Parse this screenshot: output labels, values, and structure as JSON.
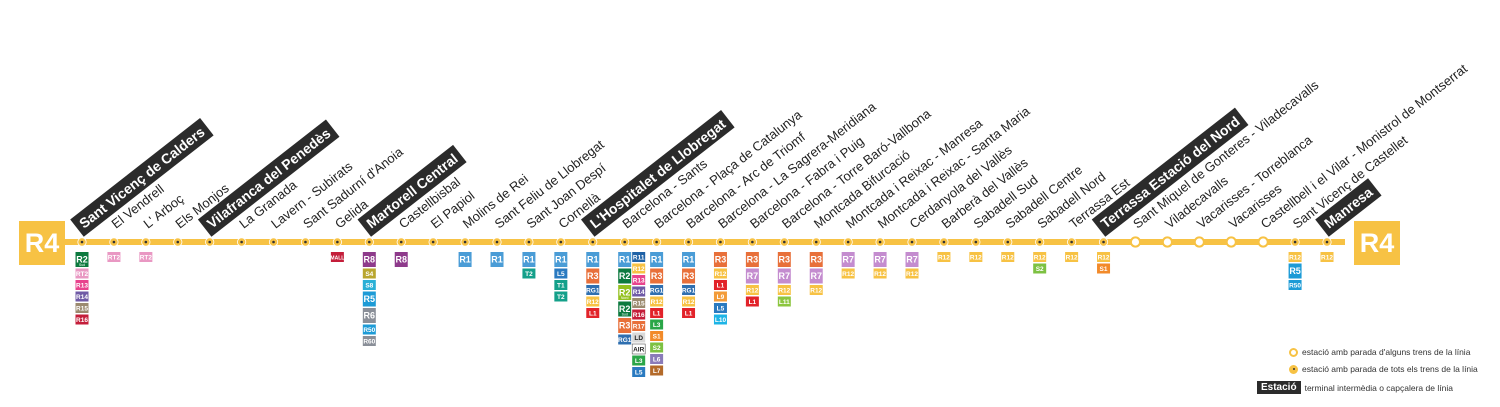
{
  "line": {
    "name": "R4",
    "color": "#f7c244"
  },
  "stations": [
    {
      "name": "Sant Vicenç de Calders",
      "terminal": true,
      "all_stop": true,
      "conn": [
        "R2 Sud",
        "RT2",
        "R13",
        "R14",
        "R15",
        "R16"
      ]
    },
    {
      "name": "El Vendrell",
      "terminal": false,
      "all_stop": true,
      "conn": [
        "RT2"
      ]
    },
    {
      "name": "L' Arboç",
      "terminal": false,
      "all_stop": true,
      "conn": [
        "RT2"
      ]
    },
    {
      "name": "Els Monjos",
      "terminal": false,
      "all_stop": true,
      "conn": []
    },
    {
      "name": "Vilafranca del Penedès",
      "terminal": true,
      "all_stop": true,
      "conn": []
    },
    {
      "name": "La Granada",
      "terminal": false,
      "all_stop": true,
      "conn": []
    },
    {
      "name": "Lavern - Subirats",
      "terminal": false,
      "all_stop": true,
      "conn": []
    },
    {
      "name": "Sant Sadurní d'Anoia",
      "terminal": false,
      "all_stop": true,
      "conn": []
    },
    {
      "name": "Gelida",
      "terminal": false,
      "all_stop": true,
      "conn": [
        "CREMALLERA"
      ]
    },
    {
      "name": "Martorell Central",
      "terminal": true,
      "all_stop": true,
      "conn": [
        "R8",
        "S4",
        "S8",
        "R5",
        "R6",
        "R50",
        "R60"
      ]
    },
    {
      "name": "Castellbisbal",
      "terminal": false,
      "all_stop": true,
      "conn": [
        "R8"
      ]
    },
    {
      "name": "El Papiol",
      "terminal": false,
      "all_stop": true,
      "conn": []
    },
    {
      "name": "Molins de Rei",
      "terminal": false,
      "all_stop": true,
      "conn": [
        "R1"
      ]
    },
    {
      "name": "Sant Feliu de Llobregat",
      "terminal": false,
      "all_stop": true,
      "conn": [
        "R1"
      ]
    },
    {
      "name": "Sant Joan Despí",
      "terminal": false,
      "all_stop": true,
      "conn": [
        "R1",
        "T2"
      ]
    },
    {
      "name": "Cornellà",
      "terminal": false,
      "all_stop": true,
      "conn": [
        "R1",
        "L5",
        "T1",
        "T2"
      ]
    },
    {
      "name": "L'Hospitalet de Llobregat",
      "terminal": true,
      "all_stop": true,
      "conn": [
        "R1",
        "R3",
        "RG1",
        "R12",
        "L1"
      ]
    },
    {
      "name": "Barcelona - Sants",
      "terminal": false,
      "all_stop": true,
      "conn": [
        "R1",
        "R2",
        "R2 Nord",
        "R2 Sud",
        "R3",
        "RG1"
      ],
      "conn2": [
        "R11",
        "R12",
        "R13",
        "R14",
        "R15",
        "R16",
        "R17",
        "LD",
        "AIR",
        "L3",
        "L5"
      ]
    },
    {
      "name": "Barcelona - Plaça de Catalunya",
      "terminal": false,
      "all_stop": true,
      "conn": [
        "R1",
        "R3",
        "RG1",
        "R12",
        "L1",
        "L3",
        "S1",
        "S2",
        "L6",
        "L7"
      ]
    },
    {
      "name": "Barcelona - Arc de Triomf",
      "terminal": false,
      "all_stop": true,
      "conn": [
        "R1",
        "R3",
        "RG1",
        "R12",
        "L1"
      ]
    },
    {
      "name": "Barcelona - La Sagrera-Meridiana",
      "terminal": false,
      "all_stop": true,
      "conn": [
        "R3",
        "R12",
        "L1",
        "L9",
        "L5",
        "L10"
      ]
    },
    {
      "name": "Barcelona - Fabra i Puig",
      "terminal": false,
      "all_stop": true,
      "conn": [
        "R3",
        "R7",
        "R12",
        "L1"
      ]
    },
    {
      "name": "Barcelona - Torre Baró-Vallbona",
      "terminal": false,
      "all_stop": true,
      "conn": [
        "R3",
        "R7",
        "R12",
        "L11"
      ]
    },
    {
      "name": "Montcada Bifurcació",
      "terminal": false,
      "all_stop": true,
      "conn": [
        "R3",
        "R7",
        "R12"
      ]
    },
    {
      "name": "Montcada i Reixac - Manresa",
      "terminal": false,
      "all_stop": true,
      "conn": [
        "R7",
        "R12"
      ]
    },
    {
      "name": "Montcada i Reixac - Santa Maria",
      "terminal": false,
      "all_stop": true,
      "conn": [
        "R7",
        "R12"
      ]
    },
    {
      "name": "Cerdanyola del Vallès",
      "terminal": false,
      "all_stop": true,
      "conn": [
        "R7",
        "R12"
      ]
    },
    {
      "name": "Barberà del Vallès",
      "terminal": false,
      "all_stop": true,
      "conn": [
        "R12"
      ]
    },
    {
      "name": "Sabadell Sud",
      "terminal": false,
      "all_stop": true,
      "conn": [
        "R12"
      ]
    },
    {
      "name": "Sabadell Centre",
      "terminal": false,
      "all_stop": true,
      "conn": [
        "R12"
      ]
    },
    {
      "name": "Sabadell Nord",
      "terminal": false,
      "all_stop": true,
      "conn": [
        "R12",
        "S2"
      ]
    },
    {
      "name": "Terrassa Est",
      "terminal": false,
      "all_stop": true,
      "conn": [
        "R12"
      ]
    },
    {
      "name": "Terrassa Estació del Nord",
      "terminal": true,
      "all_stop": true,
      "conn": [
        "R12",
        "S1"
      ]
    },
    {
      "name": "Sant Miquel de Gonteres - Viladecavalls",
      "terminal": false,
      "all_stop": false,
      "conn": []
    },
    {
      "name": "Viladecavalls",
      "terminal": false,
      "all_stop": false,
      "conn": []
    },
    {
      "name": "Vacarisses - Torreblanca",
      "terminal": false,
      "all_stop": false,
      "conn": []
    },
    {
      "name": "Vacarisses",
      "terminal": false,
      "all_stop": false,
      "conn": []
    },
    {
      "name": "Castellbell i el Vilar - Monistrol de Montserrat",
      "terminal": false,
      "all_stop": false,
      "conn": []
    },
    {
      "name": "Sant Vicenç de Castellet",
      "terminal": false,
      "all_stop": true,
      "conn": [
        "R12",
        "R5",
        "R50"
      ]
    },
    {
      "name": "Manresa",
      "terminal": true,
      "all_stop": true,
      "conn": [
        "R12"
      ]
    }
  ],
  "line_colors": {
    "R1": "#4a9cd6",
    "R2": "#0d7a3f",
    "R2 Nord": "#94c11f",
    "R2 Sud": "#0d7a3f",
    "R3": "#e8703a",
    "R4": "#f7c244",
    "R5": "#1d9bd6",
    "R50": "#1d9bd6",
    "R6": "#8a8f98",
    "R60": "#8a8f98",
    "R7": "#c48ccf",
    "R8": "#8e3a8b",
    "R11": "#1f62a6",
    "R12": "#f7c244",
    "R13": "#e8438d",
    "R14": "#6f5aa6",
    "R15": "#9b8a6f",
    "R16": "#c41e3a",
    "R17": "#e8703a",
    "RT2": "#e998c3",
    "RG1": "#2f6fb0",
    "S1": "#f28a2a",
    "S2": "#7dc142",
    "S4": "#b9a62e",
    "S8": "#2ab0d6",
    "L1": "#e2232a",
    "L3": "#2aa648",
    "L5": "#2a7ac0",
    "L6": "#8a7bb9",
    "L7": "#b36a2a",
    "L9": "#f39c3a",
    "L10": "#1db4e6",
    "L11": "#8cc63f",
    "T1": "#14a08a",
    "T2": "#14a08a",
    "LD": "#d9d9d9",
    "AIR": "#ffffff",
    "CREMALLERA": "#c41e3a"
  },
  "legend": {
    "partial": "estació amb parada d'alguns trens de la línia",
    "all": "estació amb parada de tots els trens de la línia",
    "terminal_sample": "Estació",
    "terminal": "terminal intermèdia o capçalera de línia"
  }
}
